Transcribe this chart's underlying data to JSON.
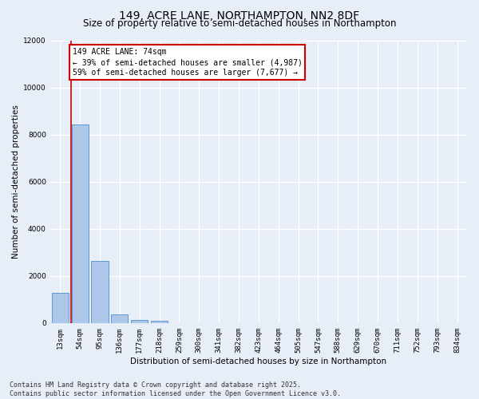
{
  "title": "149, ACRE LANE, NORTHAMPTON, NN2 8DF",
  "subtitle": "Size of property relative to semi-detached houses in Northampton",
  "xlabel": "Distribution of semi-detached houses by size in Northampton",
  "ylabel": "Number of semi-detached properties",
  "categories": [
    "13sqm",
    "54sqm",
    "95sqm",
    "136sqm",
    "177sqm",
    "218sqm",
    "259sqm",
    "300sqm",
    "341sqm",
    "382sqm",
    "423sqm",
    "464sqm",
    "505sqm",
    "547sqm",
    "588sqm",
    "629sqm",
    "670sqm",
    "711sqm",
    "752sqm",
    "793sqm",
    "834sqm"
  ],
  "values": [
    1300,
    8450,
    2650,
    380,
    130,
    80,
    0,
    0,
    0,
    0,
    0,
    0,
    0,
    0,
    0,
    0,
    0,
    0,
    0,
    0,
    0
  ],
  "bar_color": "#aec6e8",
  "bar_edge_color": "#5b9bd5",
  "red_line_color": "#cc0000",
  "annotation_title": "149 ACRE LANE: 74sqm",
  "annotation_line1": "← 39% of semi-detached houses are smaller (4,987)",
  "annotation_line2": "59% of semi-detached houses are larger (7,677) →",
  "annotation_box_color": "#ffffff",
  "annotation_box_edge_color": "#cc0000",
  "ylim": [
    0,
    12000
  ],
  "yticks": [
    0,
    2000,
    4000,
    6000,
    8000,
    10000,
    12000
  ],
  "background_color": "#e8eef8",
  "grid_color": "#ffffff",
  "footer1": "Contains HM Land Registry data © Crown copyright and database right 2025.",
  "footer2": "Contains public sector information licensed under the Open Government Licence v3.0.",
  "title_fontsize": 10,
  "subtitle_fontsize": 8.5,
  "axis_label_fontsize": 7.5,
  "tick_fontsize": 6.5,
  "footer_fontsize": 6,
  "annotation_fontsize": 7
}
